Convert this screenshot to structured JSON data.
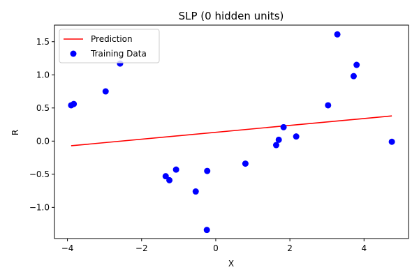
{
  "chart_data": {
    "type": "scatter",
    "title": "SLP (0 hidden units)",
    "xlabel": "X",
    "ylabel": "R",
    "xlim": [
      -4.35,
      5.2
    ],
    "ylim": [
      -1.47,
      1.75
    ],
    "xticks": [
      -4,
      -2,
      0,
      2,
      4
    ],
    "yticks": [
      -1.0,
      -0.5,
      0.0,
      0.5,
      1.0,
      1.5
    ],
    "xtick_labels": [
      "−4",
      "−2",
      "0",
      "2",
      "4"
    ],
    "ytick_labels": [
      "−1.0",
      "−0.5",
      "0.0",
      "0.5",
      "1.0",
      "1.5"
    ],
    "grid": false,
    "legend_position": "upper-left",
    "series": [
      {
        "name": "Prediction",
        "kind": "line",
        "color": "#ff0000",
        "x": [
          -3.9,
          4.75
        ],
        "y": [
          -0.07,
          0.38
        ]
      },
      {
        "name": "Training Data",
        "kind": "scatter",
        "color": "#0000ff",
        "x": [
          -3.9,
          -3.83,
          -2.97,
          -2.58,
          -1.35,
          -1.25,
          -1.07,
          -0.54,
          -0.24,
          -0.23,
          0.8,
          1.63,
          1.7,
          1.83,
          2.17,
          3.03,
          3.28,
          3.72,
          3.8,
          4.75
        ],
        "y": [
          0.54,
          0.56,
          0.75,
          1.17,
          -0.53,
          -0.59,
          -0.43,
          -0.76,
          -1.34,
          -0.45,
          -0.34,
          -0.06,
          0.02,
          0.21,
          0.07,
          0.54,
          1.61,
          0.98,
          1.15,
          -0.01
        ]
      }
    ]
  }
}
